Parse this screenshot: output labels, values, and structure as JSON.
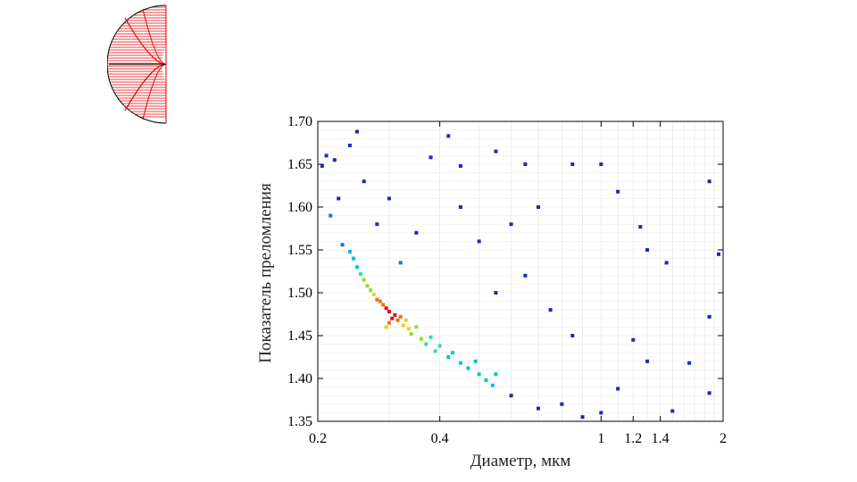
{
  "logo": {
    "name": "red-hemisphere-logo",
    "color": "#e00000"
  },
  "chart_data": {
    "type": "scatter",
    "title": "",
    "xlabel": "Диаметр, мкм",
    "ylabel": "Показатель преломления",
    "x_scale": "log",
    "xlim": [
      0.2,
      2
    ],
    "ylim": [
      1.35,
      1.7
    ],
    "x_ticks": [
      {
        "value": 0.2,
        "label": "0.2"
      },
      {
        "value": 0.4,
        "label": "0.4"
      },
      {
        "value": 1,
        "label": "1"
      },
      {
        "value": 1.2,
        "label": "1.2"
      },
      {
        "value": 1.4,
        "label": "1.4"
      },
      {
        "value": 2,
        "label": "2"
      }
    ],
    "y_ticks": [
      {
        "value": 1.35,
        "label": "1.35"
      },
      {
        "value": 1.4,
        "label": "1.40"
      },
      {
        "value": 1.45,
        "label": "1.45"
      },
      {
        "value": 1.5,
        "label": "1.50"
      },
      {
        "value": 1.55,
        "label": "1.55"
      },
      {
        "value": 1.6,
        "label": "1.60"
      },
      {
        "value": 1.65,
        "label": "1.65"
      },
      {
        "value": 1.7,
        "label": "1.70"
      }
    ],
    "grid": true,
    "legend": "none",
    "colormap": [
      "#0a1ab0",
      "#1f6fe0",
      "#00c0e0",
      "#30e0a0",
      "#90e020",
      "#f0d010",
      "#f07010",
      "#e01010"
    ],
    "point_color": "#1a28c0",
    "series": [
      {
        "values": [
          {
            "x": 0.3,
            "y": 1.478,
            "d": 1.0
          },
          {
            "x": 0.31,
            "y": 1.474,
            "d": 1.0
          },
          {
            "x": 0.295,
            "y": 1.482,
            "d": 1.0
          },
          {
            "x": 0.305,
            "y": 1.47,
            "d": 0.95
          },
          {
            "x": 0.29,
            "y": 1.486,
            "d": 0.9
          },
          {
            "x": 0.315,
            "y": 1.468,
            "d": 0.9
          },
          {
            "x": 0.285,
            "y": 1.49,
            "d": 0.85
          },
          {
            "x": 0.32,
            "y": 1.472,
            "d": 0.85
          },
          {
            "x": 0.3,
            "y": 1.465,
            "d": 0.85
          },
          {
            "x": 0.28,
            "y": 1.492,
            "d": 0.8
          },
          {
            "x": 0.325,
            "y": 1.462,
            "d": 0.75
          },
          {
            "x": 0.33,
            "y": 1.468,
            "d": 0.7
          },
          {
            "x": 0.275,
            "y": 1.498,
            "d": 0.7
          },
          {
            "x": 0.295,
            "y": 1.46,
            "d": 0.7
          },
          {
            "x": 0.335,
            "y": 1.458,
            "d": 0.65
          },
          {
            "x": 0.27,
            "y": 1.503,
            "d": 0.6
          },
          {
            "x": 0.34,
            "y": 1.452,
            "d": 0.6
          },
          {
            "x": 0.35,
            "y": 1.46,
            "d": 0.55
          },
          {
            "x": 0.265,
            "y": 1.508,
            "d": 0.55
          },
          {
            "x": 0.36,
            "y": 1.446,
            "d": 0.5
          },
          {
            "x": 0.26,
            "y": 1.515,
            "d": 0.5
          },
          {
            "x": 0.37,
            "y": 1.44,
            "d": 0.45
          },
          {
            "x": 0.38,
            "y": 1.448,
            "d": 0.45
          },
          {
            "x": 0.255,
            "y": 1.522,
            "d": 0.4
          },
          {
            "x": 0.39,
            "y": 1.432,
            "d": 0.4
          },
          {
            "x": 0.4,
            "y": 1.438,
            "d": 0.4
          },
          {
            "x": 0.25,
            "y": 1.53,
            "d": 0.35
          },
          {
            "x": 0.42,
            "y": 1.425,
            "d": 0.35
          },
          {
            "x": 0.43,
            "y": 1.43,
            "d": 0.35
          },
          {
            "x": 0.245,
            "y": 1.54,
            "d": 0.3
          },
          {
            "x": 0.45,
            "y": 1.418,
            "d": 0.3
          },
          {
            "x": 0.47,
            "y": 1.412,
            "d": 0.3
          },
          {
            "x": 0.49,
            "y": 1.42,
            "d": 0.28
          },
          {
            "x": 0.5,
            "y": 1.405,
            "d": 0.26
          },
          {
            "x": 0.52,
            "y": 1.398,
            "d": 0.25
          },
          {
            "x": 0.54,
            "y": 1.392,
            "d": 0.24
          },
          {
            "x": 0.55,
            "y": 1.405,
            "d": 0.22
          },
          {
            "x": 0.24,
            "y": 1.548,
            "d": 0.25
          },
          {
            "x": 0.23,
            "y": 1.556,
            "d": 0.2
          },
          {
            "x": 0.215,
            "y": 1.59,
            "d": 0.1
          },
          {
            "x": 0.22,
            "y": 1.655,
            "d": 0.05
          },
          {
            "x": 0.24,
            "y": 1.672,
            "d": 0.05
          },
          {
            "x": 0.25,
            "y": 1.688,
            "d": 0.05
          },
          {
            "x": 0.21,
            "y": 1.66,
            "d": 0.05
          },
          {
            "x": 0.26,
            "y": 1.63,
            "d": 0.05
          },
          {
            "x": 0.205,
            "y": 1.648,
            "d": 0.05
          },
          {
            "x": 0.225,
            "y": 1.61,
            "d": 0.05
          },
          {
            "x": 0.42,
            "y": 1.683,
            "d": 0.05
          },
          {
            "x": 0.38,
            "y": 1.658,
            "d": 0.05
          },
          {
            "x": 0.45,
            "y": 1.648,
            "d": 0.05
          },
          {
            "x": 0.55,
            "y": 1.665,
            "d": 0.05
          },
          {
            "x": 0.65,
            "y": 1.65,
            "d": 0.05
          },
          {
            "x": 0.85,
            "y": 1.65,
            "d": 0.05
          },
          {
            "x": 1.0,
            "y": 1.65,
            "d": 0.05
          },
          {
            "x": 1.1,
            "y": 1.618,
            "d": 0.05
          },
          {
            "x": 0.7,
            "y": 1.6,
            "d": 0.05
          },
          {
            "x": 0.6,
            "y": 1.58,
            "d": 0.05
          },
          {
            "x": 1.25,
            "y": 1.577,
            "d": 0.05
          },
          {
            "x": 1.3,
            "y": 1.55,
            "d": 0.05
          },
          {
            "x": 1.45,
            "y": 1.535,
            "d": 0.05
          },
          {
            "x": 1.85,
            "y": 1.63,
            "d": 0.05
          },
          {
            "x": 1.95,
            "y": 1.545,
            "d": 0.05
          },
          {
            "x": 1.85,
            "y": 1.472,
            "d": 0.05
          },
          {
            "x": 1.65,
            "y": 1.418,
            "d": 0.05
          },
          {
            "x": 1.85,
            "y": 1.383,
            "d": 0.05
          },
          {
            "x": 1.5,
            "y": 1.362,
            "d": 0.05
          },
          {
            "x": 1.2,
            "y": 1.445,
            "d": 0.05
          },
          {
            "x": 1.3,
            "y": 1.42,
            "d": 0.05
          },
          {
            "x": 1.1,
            "y": 1.388,
            "d": 0.05
          },
          {
            "x": 1.0,
            "y": 1.36,
            "d": 0.05
          },
          {
            "x": 0.8,
            "y": 1.37,
            "d": 0.05
          },
          {
            "x": 0.9,
            "y": 1.355,
            "d": 0.05
          },
          {
            "x": 0.7,
            "y": 1.365,
            "d": 0.05
          },
          {
            "x": 0.6,
            "y": 1.38,
            "d": 0.05
          },
          {
            "x": 0.85,
            "y": 1.45,
            "d": 0.05
          },
          {
            "x": 0.75,
            "y": 1.48,
            "d": 0.05
          },
          {
            "x": 0.65,
            "y": 1.52,
            "d": 0.05
          },
          {
            "x": 0.55,
            "y": 1.5,
            "d": 0.05
          },
          {
            "x": 0.5,
            "y": 1.56,
            "d": 0.05
          },
          {
            "x": 0.45,
            "y": 1.6,
            "d": 0.05
          },
          {
            "x": 0.35,
            "y": 1.57,
            "d": 0.05
          },
          {
            "x": 0.32,
            "y": 1.535,
            "d": 0.1
          },
          {
            "x": 0.3,
            "y": 1.61,
            "d": 0.05
          },
          {
            "x": 0.28,
            "y": 1.58,
            "d": 0.05
          }
        ]
      }
    ]
  }
}
